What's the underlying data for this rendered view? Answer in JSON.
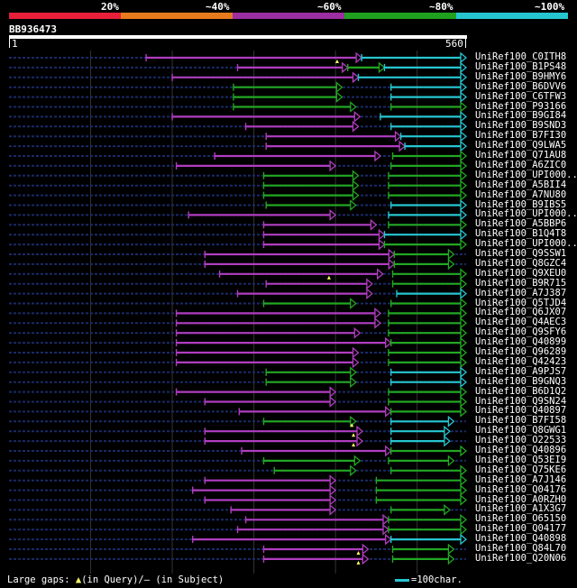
{
  "legend": {
    "labels": [
      "20%",
      "~40%",
      "~60%",
      "~80%",
      "~100%"
    ],
    "colors": [
      "#e8203a",
      "#e87a1e",
      "#9b2ea0",
      "#1fa11f",
      "#26c6d0"
    ]
  },
  "query": {
    "id": "BB936473",
    "start": "1",
    "end": "560",
    "length": 560
  },
  "colors": {
    "background": "#000000",
    "dotted": "#1a2a66",
    "grid": "#333333",
    "magenta": "#b03dc0",
    "green": "#22a722",
    "cyan": "#26c6d0",
    "gap_marker": "#ffff66"
  },
  "hits": [
    {
      "label": "UniRef100_C0ITH8",
      "segs": [
        [
          168,
          432,
          "magenta"
        ],
        [
          432,
          560,
          "cyan"
        ]
      ],
      "gaps": [
        [
          402,
          "query"
        ]
      ]
    },
    {
      "label": "UniRef100_B1PS48",
      "segs": [
        [
          280,
          415,
          "magenta"
        ],
        [
          415,
          460,
          "green"
        ],
        [
          460,
          560,
          "cyan"
        ]
      ],
      "gaps": []
    },
    {
      "label": "UniRef100_B9HMY6",
      "segs": [
        [
          200,
          428,
          "magenta"
        ],
        [
          428,
          560,
          "cyan"
        ]
      ],
      "gaps": []
    },
    {
      "label": "UniRef100_B6DVV6",
      "segs": [
        [
          275,
          408,
          "green"
        ],
        [
          468,
          560,
          "cyan"
        ]
      ],
      "gaps": []
    },
    {
      "label": "UniRef100_C6TFW3",
      "segs": [
        [
          275,
          408,
          "green"
        ],
        [
          468,
          560,
          "cyan"
        ]
      ],
      "gaps": []
    },
    {
      "label": "UniRef100_P93166",
      "segs": [
        [
          275,
          425,
          "green"
        ],
        [
          468,
          560,
          "green"
        ]
      ],
      "gaps": []
    },
    {
      "label": "UniRef100_B9GI84",
      "segs": [
        [
          200,
          430,
          "magenta"
        ],
        [
          455,
          560,
          "cyan"
        ]
      ],
      "gaps": []
    },
    {
      "label": "UniRef100_B9SND3",
      "segs": [
        [
          290,
          428,
          "magenta"
        ],
        [
          468,
          560,
          "cyan"
        ]
      ],
      "gaps": []
    },
    {
      "label": "UniRef100_B7FI30",
      "segs": [
        [
          315,
          480,
          "magenta"
        ],
        [
          480,
          560,
          "cyan"
        ]
      ],
      "gaps": []
    },
    {
      "label": "UniRef100_Q9LWA5",
      "segs": [
        [
          315,
          485,
          "magenta"
        ],
        [
          485,
          560,
          "cyan"
        ]
      ],
      "gaps": []
    },
    {
      "label": "UniRef100_Q71AU8",
      "segs": [
        [
          252,
          455,
          "magenta"
        ],
        [
          470,
          560,
          "green"
        ]
      ],
      "gaps": []
    },
    {
      "label": "UniRef100_A6ZIC0",
      "segs": [
        [
          205,
          400,
          "magenta"
        ],
        [
          468,
          560,
          "green"
        ]
      ],
      "gaps": []
    },
    {
      "label": "UniRef100_UPI000..",
      "segs": [
        [
          312,
          428,
          "green"
        ],
        [
          465,
          560,
          "green"
        ]
      ],
      "gaps": []
    },
    {
      "label": "UniRef100_A5BII4",
      "segs": [
        [
          312,
          428,
          "green"
        ],
        [
          465,
          560,
          "green"
        ]
      ],
      "gaps": []
    },
    {
      "label": "UniRef100_A7NU80",
      "segs": [
        [
          312,
          428,
          "green"
        ],
        [
          465,
          560,
          "green"
        ]
      ],
      "gaps": []
    },
    {
      "label": "UniRef100_B9IBS5",
      "segs": [
        [
          315,
          425,
          "green"
        ],
        [
          468,
          560,
          "cyan"
        ]
      ],
      "gaps": []
    },
    {
      "label": "UniRef100_UPI000..",
      "segs": [
        [
          220,
          400,
          "magenta"
        ],
        [
          465,
          560,
          "cyan"
        ]
      ],
      "gaps": []
    },
    {
      "label": "UniRef100_A5BBP6",
      "segs": [
        [
          312,
          450,
          "magenta"
        ],
        [
          465,
          560,
          "green"
        ]
      ],
      "gaps": []
    },
    {
      "label": "UniRef100_B1Q4T8",
      "segs": [
        [
          312,
          460,
          "magenta"
        ],
        [
          460,
          560,
          "cyan"
        ]
      ],
      "gaps": []
    },
    {
      "label": "UniRef100_UPI000..",
      "segs": [
        [
          312,
          460,
          "magenta"
        ],
        [
          460,
          560,
          "green"
        ]
      ],
      "gaps": []
    },
    {
      "label": "UniRef100_Q9SSW1",
      "segs": [
        [
          240,
          472,
          "magenta"
        ],
        [
          472,
          545,
          "green"
        ]
      ],
      "gaps": []
    },
    {
      "label": "UniRef100_Q8GZC4",
      "segs": [
        [
          240,
          472,
          "magenta"
        ],
        [
          472,
          545,
          "green"
        ]
      ],
      "gaps": []
    },
    {
      "label": "UniRef100_Q9XEU0",
      "segs": [
        [
          258,
          458,
          "magenta"
        ],
        [
          470,
          560,
          "green"
        ]
      ],
      "gaps": [
        [
          392,
          "query"
        ]
      ]
    },
    {
      "label": "UniRef100_B9R715",
      "segs": [
        [
          315,
          445,
          "magenta"
        ],
        [
          470,
          560,
          "green"
        ]
      ],
      "gaps": []
    },
    {
      "label": "UniRef100_A7J387",
      "segs": [
        [
          280,
          445,
          "magenta"
        ],
        [
          475,
          560,
          "cyan"
        ]
      ],
      "gaps": []
    },
    {
      "label": "UniRef100_Q5TJD4",
      "segs": [
        [
          312,
          425,
          "green"
        ],
        [
          468,
          560,
          "green"
        ]
      ],
      "gaps": []
    },
    {
      "label": "UniRef100_Q6JX07",
      "segs": [
        [
          205,
          455,
          "magenta"
        ],
        [
          465,
          560,
          "green"
        ]
      ],
      "gaps": []
    },
    {
      "label": "UniRef100_Q4AEC3",
      "segs": [
        [
          205,
          455,
          "magenta"
        ],
        [
          465,
          560,
          "green"
        ]
      ],
      "gaps": []
    },
    {
      "label": "UniRef100_Q9SFY6",
      "segs": [
        [
          205,
          430,
          "magenta"
        ],
        [
          465,
          560,
          "green"
        ]
      ],
      "gaps": []
    },
    {
      "label": "UniRef100_Q40899",
      "segs": [
        [
          205,
          468,
          "magenta"
        ],
        [
          468,
          560,
          "green"
        ]
      ],
      "gaps": []
    },
    {
      "label": "UniRef100_Q96289",
      "segs": [
        [
          205,
          428,
          "magenta"
        ],
        [
          465,
          560,
          "green"
        ]
      ],
      "gaps": []
    },
    {
      "label": "UniRef100_Q42423",
      "segs": [
        [
          205,
          428,
          "magenta"
        ],
        [
          465,
          560,
          "green"
        ]
      ],
      "gaps": []
    },
    {
      "label": "UniRef100_A9PJS7",
      "segs": [
        [
          315,
          425,
          "green"
        ],
        [
          468,
          560,
          "cyan"
        ]
      ],
      "gaps": []
    },
    {
      "label": "UniRef100_B9GNQ3",
      "segs": [
        [
          315,
          425,
          "green"
        ],
        [
          468,
          560,
          "cyan"
        ]
      ],
      "gaps": []
    },
    {
      "label": "UniRef100_B6D1Q2",
      "segs": [
        [
          205,
          400,
          "magenta"
        ],
        [
          465,
          560,
          "green"
        ]
      ],
      "gaps": []
    },
    {
      "label": "UniRef100_Q9SN24",
      "segs": [
        [
          240,
          400,
          "magenta"
        ],
        [
          465,
          560,
          "green"
        ]
      ],
      "gaps": []
    },
    {
      "label": "UniRef100_Q40897",
      "segs": [
        [
          282,
          468,
          "magenta"
        ],
        [
          468,
          560,
          "green"
        ]
      ],
      "gaps": []
    },
    {
      "label": "UniRef100_B7FI58",
      "segs": [
        [
          312,
          425,
          "green"
        ],
        [
          468,
          545,
          "cyan"
        ]
      ],
      "gaps": [
        [
          420,
          "query"
        ]
      ]
    },
    {
      "label": "UniRef100_Q8GWG1",
      "segs": [
        [
          240,
          433,
          "magenta"
        ],
        [
          468,
          540,
          "cyan"
        ]
      ],
      "gaps": [
        [
          422,
          "query"
        ]
      ]
    },
    {
      "label": "UniRef100_O22533",
      "segs": [
        [
          240,
          433,
          "magenta"
        ],
        [
          468,
          540,
          "cyan"
        ]
      ],
      "gaps": [
        [
          422,
          "query"
        ]
      ]
    },
    {
      "label": "UniRef100_Q40896",
      "segs": [
        [
          285,
          468,
          "magenta"
        ],
        [
          468,
          560,
          "green"
        ]
      ],
      "gaps": []
    },
    {
      "label": "UniRef100_Q53EI9",
      "segs": [
        [
          312,
          430,
          "green"
        ],
        [
          465,
          545,
          "green"
        ]
      ],
      "gaps": []
    },
    {
      "label": "UniRef100_Q75KE6",
      "segs": [
        [
          325,
          425,
          "green"
        ],
        [
          468,
          560,
          "green"
        ]
      ],
      "gaps": []
    },
    {
      "label": "UniRef100_A7J146",
      "segs": [
        [
          240,
          400,
          "magenta"
        ],
        [
          450,
          560,
          "green"
        ]
      ],
      "gaps": []
    },
    {
      "label": "UniRef100_Q04176",
      "segs": [
        [
          225,
          400,
          "magenta"
        ],
        [
          450,
          560,
          "green"
        ]
      ],
      "gaps": []
    },
    {
      "label": "UniRef100_A0RZH0",
      "segs": [
        [
          240,
          400,
          "magenta"
        ],
        [
          450,
          560,
          "green"
        ]
      ],
      "gaps": []
    },
    {
      "label": "UniRef100_A1X3G7",
      "segs": [
        [
          272,
          400,
          "magenta"
        ],
        [
          468,
          540,
          "green"
        ]
      ],
      "gaps": []
    },
    {
      "label": "UniRef100_O65150",
      "segs": [
        [
          290,
          465,
          "magenta"
        ],
        [
          465,
          560,
          "green"
        ]
      ],
      "gaps": []
    },
    {
      "label": "UniRef100_Q04177",
      "segs": [
        [
          280,
          465,
          "magenta"
        ],
        [
          465,
          560,
          "green"
        ]
      ],
      "gaps": []
    },
    {
      "label": "UniRef100_Q40898",
      "segs": [
        [
          225,
          468,
          "magenta"
        ],
        [
          468,
          560,
          "cyan"
        ]
      ],
      "gaps": []
    },
    {
      "label": "UniRef100_Q84L70",
      "segs": [
        [
          312,
          440,
          "magenta"
        ],
        [
          470,
          545,
          "green"
        ]
      ],
      "gaps": [
        [
          428,
          "query"
        ]
      ]
    },
    {
      "label": "UniRef100_Q20N06",
      "segs": [
        [
          312,
          440,
          "magenta"
        ],
        [
          470,
          545,
          "green"
        ]
      ],
      "gaps": [
        [
          428,
          "query"
        ]
      ]
    }
  ],
  "footer": {
    "prefix": "Large gaps:",
    "query_marker": "▲",
    "query_text": "(in Query)/",
    "subject_marker": "—",
    "subject_text": " (in Subject)"
  },
  "scale_key": {
    "text": "=100char."
  }
}
